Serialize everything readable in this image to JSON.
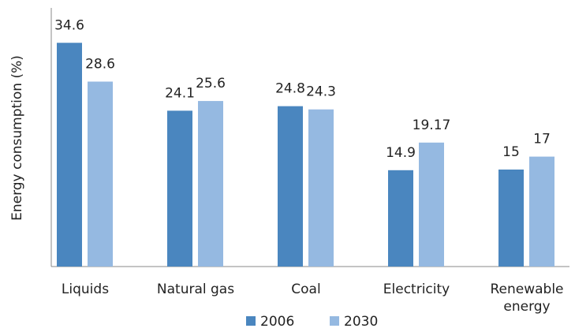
{
  "chart_data": {
    "type": "bar",
    "y_label": "Energy consumption (%)",
    "categories": [
      "Liquids",
      "Natural gas",
      "Coal",
      "Electricity",
      "Renewable energy"
    ],
    "series": [
      {
        "name": "2006",
        "color": "#4a86bf",
        "values": [
          34.6,
          24.1,
          24.8,
          14.9,
          15
        ]
      },
      {
        "name": "2030",
        "color": "#95b9e1",
        "values": [
          28.6,
          25.6,
          24.3,
          19.17,
          17
        ]
      }
    ],
    "ylim": [
      0,
      40
    ],
    "grid": false,
    "legend": "bottom"
  }
}
